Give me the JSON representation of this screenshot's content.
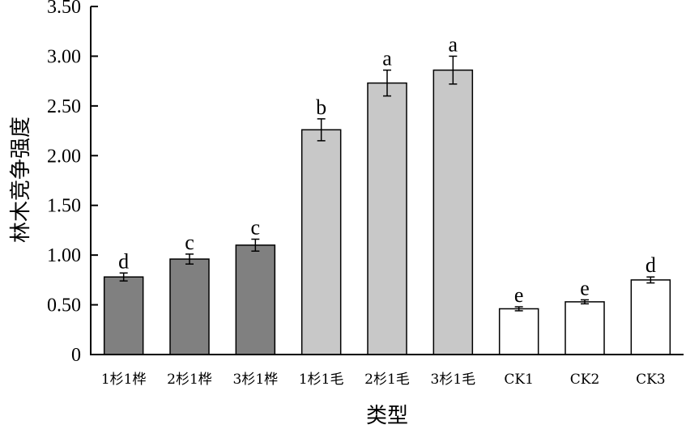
{
  "chart_data": {
    "type": "bar",
    "xlabel": "类型",
    "ylabel": "林木竞争强度",
    "ylim": [
      0,
      3.5
    ],
    "yticks": [
      "0",
      "0.50",
      "1.00",
      "1.50",
      "2.00",
      "2.50",
      "3.00",
      "3.50"
    ],
    "grid": false,
    "categories": [
      "1杉1桦",
      "2杉1桦",
      "3杉1桦",
      "1杉1毛",
      "2杉1毛",
      "3杉1毛",
      "CK1",
      "CK2",
      "CK3"
    ],
    "values": [
      0.78,
      0.96,
      1.1,
      2.26,
      2.73,
      2.86,
      0.46,
      0.53,
      0.75
    ],
    "errors": [
      0.04,
      0.05,
      0.06,
      0.11,
      0.13,
      0.14,
      0.02,
      0.02,
      0.03
    ],
    "significance": [
      "d",
      "c",
      "c",
      "b",
      "a",
      "a",
      "e",
      "e",
      "d"
    ],
    "colors": [
      "#808080",
      "#808080",
      "#808080",
      "#c8c8c8",
      "#c8c8c8",
      "#c8c8c8",
      "#ffffff",
      "#ffffff",
      "#ffffff"
    ]
  }
}
